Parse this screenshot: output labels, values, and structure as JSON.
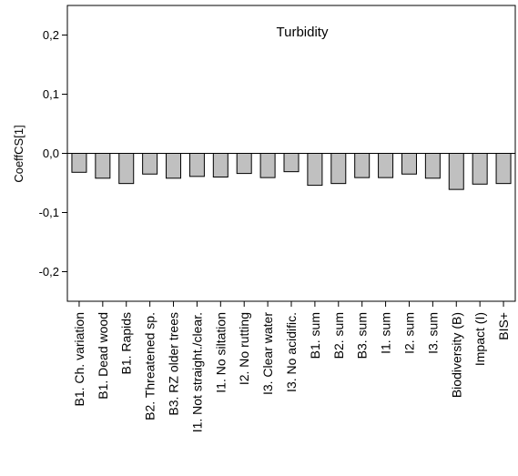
{
  "chart_data": {
    "type": "bar",
    "title": "Turbidity",
    "xlabel": "",
    "ylabel": "CoeffCS[1]",
    "ylim": [
      -0.25,
      0.25
    ],
    "yticks": [
      0.2,
      0.1,
      0.0,
      -0.1,
      -0.2
    ],
    "ytick_labels": [
      "0,2",
      "0,1",
      "0,0",
      "-0,1",
      "-0,2"
    ],
    "grid": false,
    "bar_color": "#c0c0c0",
    "categories": [
      "B1. Ch. variation",
      "B1. Dead wood",
      "B1. Rapids",
      "B2. Threatened sp.",
      "B3. RZ older trees",
      "I1. Not straight./clear.",
      "I1. No siltation",
      "I2. No rutting",
      "I3. Clear water",
      "I3. No acidific.",
      "B1. sum",
      "B2. sum",
      "B3. sum",
      "I1. sum",
      "I2. sum",
      "I3. sum",
      "Biodiversity (B)",
      "Impact (I)",
      "BIS+"
    ],
    "values": [
      -0.032,
      -0.042,
      -0.051,
      -0.035,
      -0.042,
      -0.039,
      -0.04,
      -0.034,
      -0.041,
      -0.031,
      -0.054,
      -0.051,
      -0.041,
      -0.041,
      -0.035,
      -0.042,
      -0.061,
      -0.052,
      -0.051
    ]
  }
}
